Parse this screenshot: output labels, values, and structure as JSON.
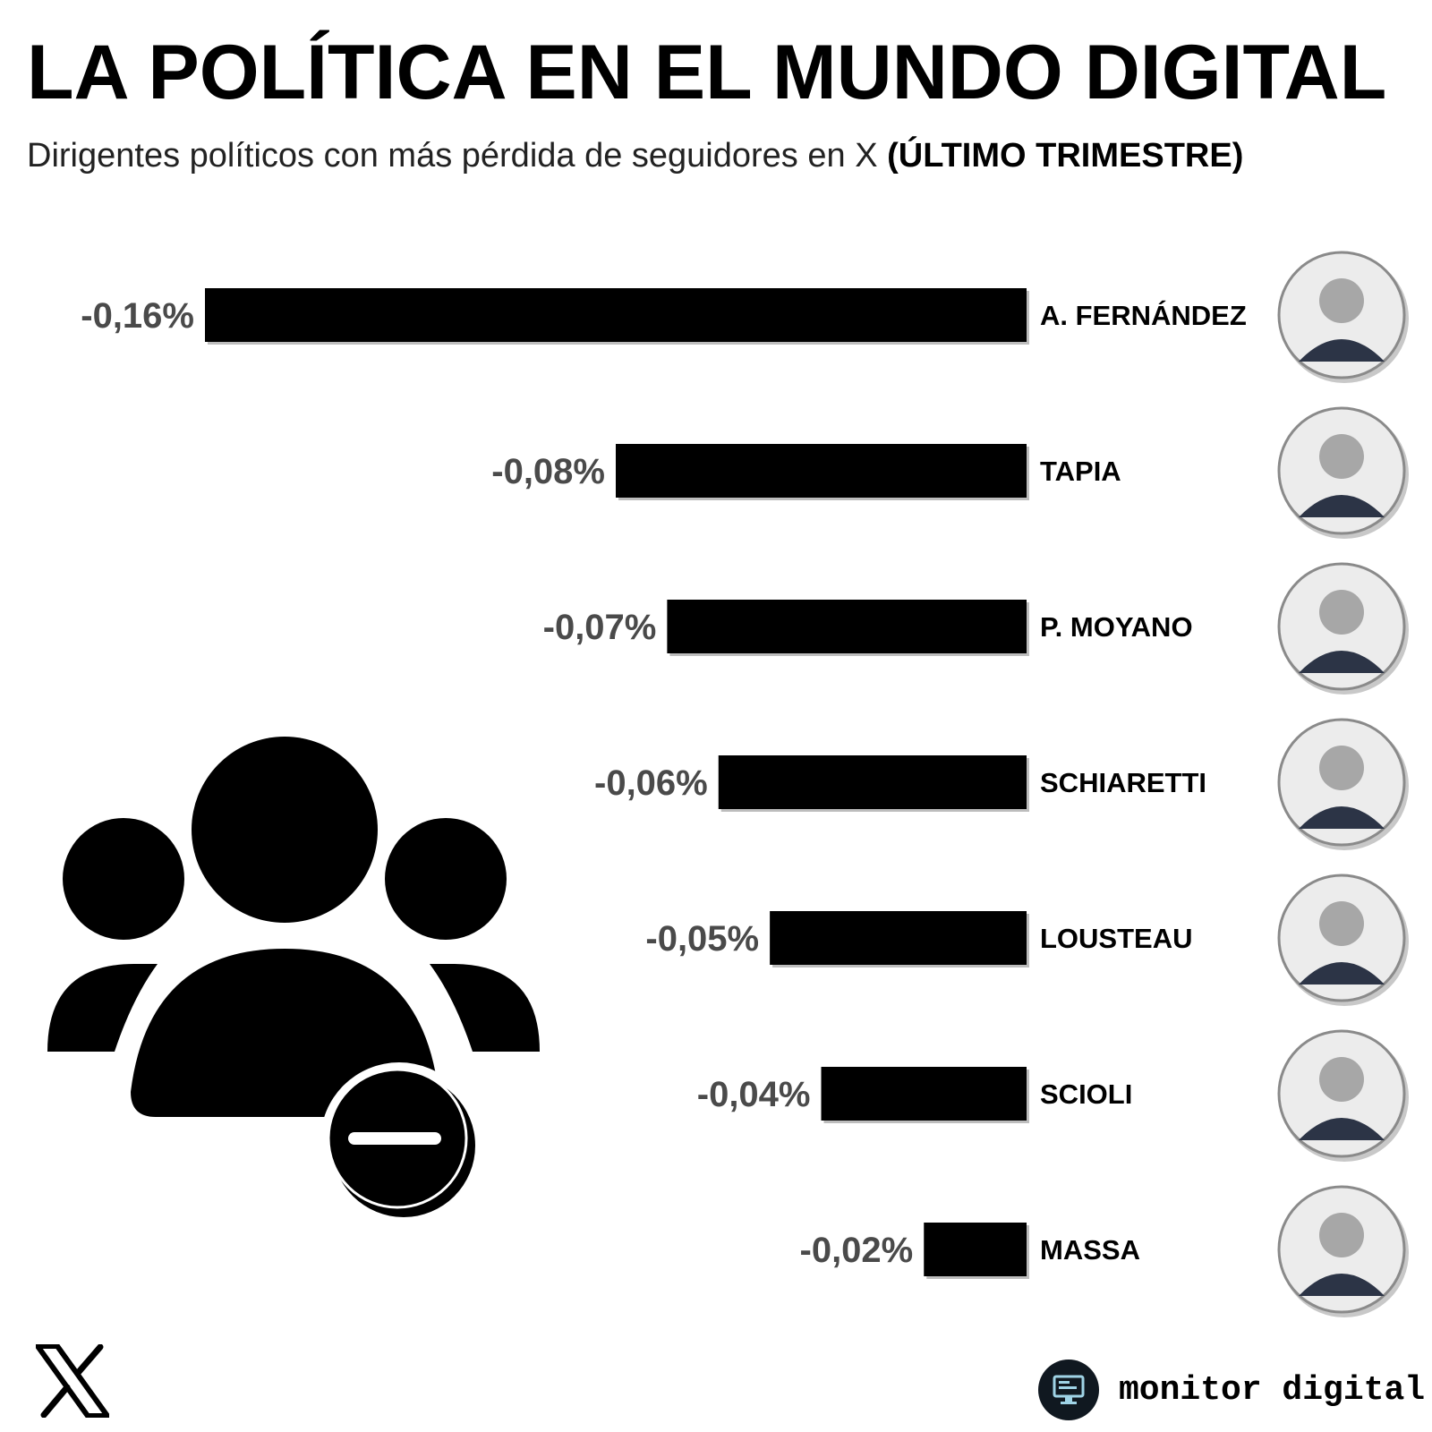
{
  "header": {
    "title": "LA POLÍTICA EN EL MUNDO DIGITAL",
    "subtitle_text": "Dirigentes políticos con más pérdida de seguidores en X ",
    "subtitle_bold": "(ÚLTIMO TRIMESTRE)"
  },
  "chart_data": {
    "type": "bar",
    "orientation": "horizontal",
    "categories": [
      "A. FERNÁNDEZ",
      "TAPIA",
      "P. MOYANO",
      "SCHIARETTI",
      "LOUSTEAU",
      "SCIOLI",
      "MASSA"
    ],
    "values": [
      -0.16,
      -0.08,
      -0.07,
      -0.06,
      -0.05,
      -0.04,
      -0.02
    ],
    "value_labels": [
      "-0,16%",
      "-0,08%",
      "-0,07%",
      "-0,06%",
      "-0,05%",
      "-0,04%",
      "-0,02%"
    ],
    "grid": false,
    "bar_color": "#000000"
  },
  "icons": {
    "main_graphic": "group-remove-icon",
    "network_logo": "x-logo-icon",
    "brand_logo": "monitor-icon"
  },
  "footer": {
    "brand": "monitor digital"
  },
  "colors": {
    "background": "#ffffff",
    "bar": "#000000",
    "value_label": "#4a4a4a",
    "brand_circle": "#101820"
  }
}
